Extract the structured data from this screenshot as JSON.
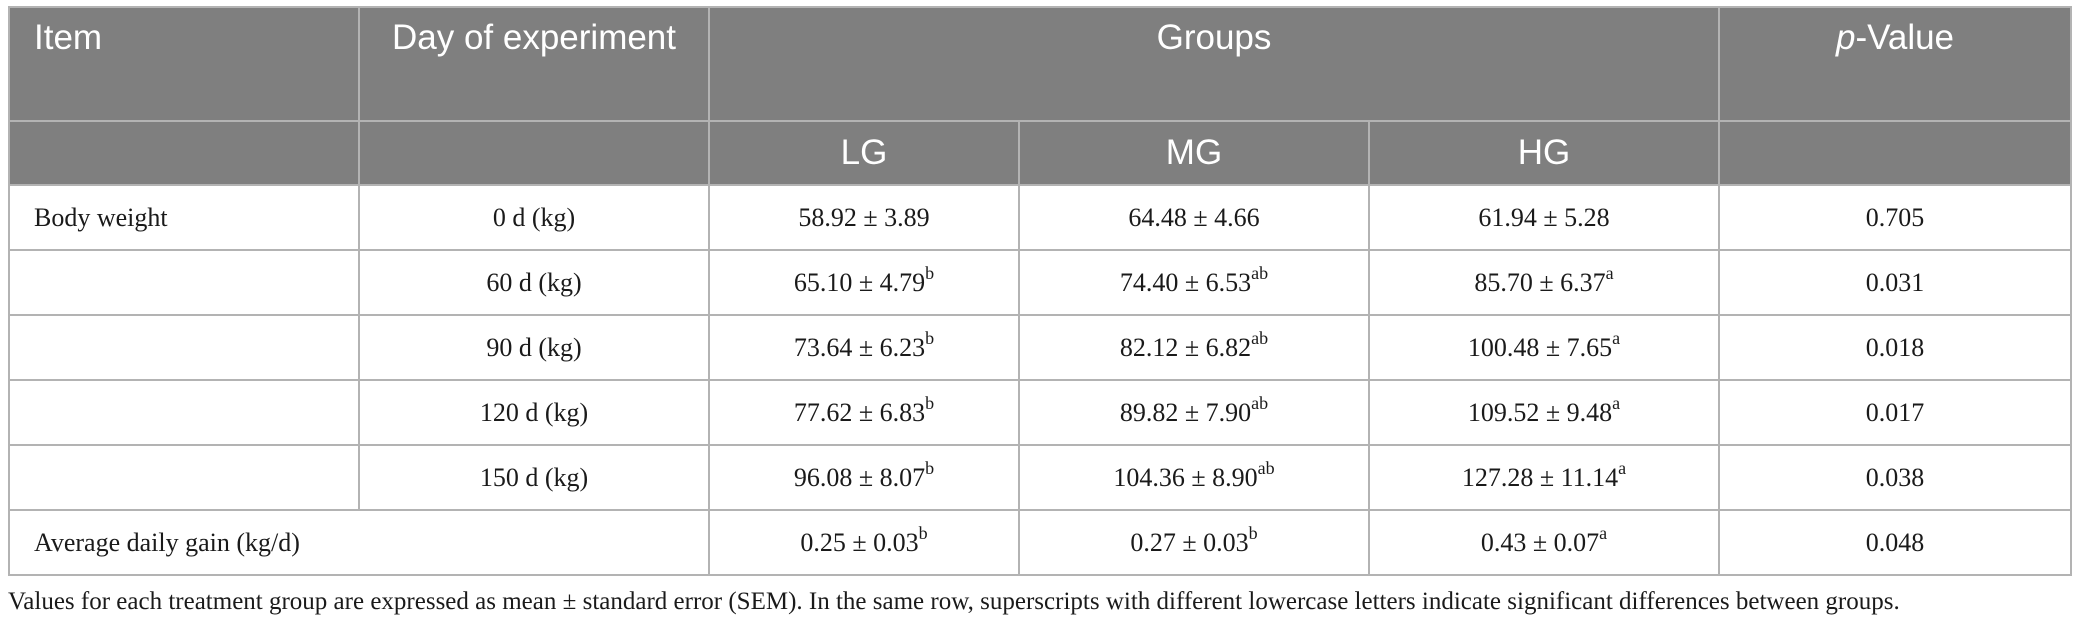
{
  "header": {
    "item": "Item",
    "day": "Day of experiment",
    "groups": "Groups",
    "pvalue_italic": "p",
    "pvalue_rest": "-Value",
    "lg": "LG",
    "mg": "MG",
    "hg": "HG"
  },
  "rows": [
    {
      "item": "Body weight",
      "day": "0 d (kg)",
      "lg": "58.92 ± 3.89",
      "lg_sup": "",
      "mg": "64.48 ± 4.66",
      "mg_sup": "",
      "hg": "61.94 ± 5.28",
      "hg_sup": "",
      "p": "0.705"
    },
    {
      "item": "",
      "day": "60 d (kg)",
      "lg": "65.10 ± 4.79",
      "lg_sup": "b",
      "mg": "74.40 ± 6.53",
      "mg_sup": "ab",
      "hg": "85.70 ± 6.37",
      "hg_sup": "a",
      "p": "0.031"
    },
    {
      "item": "",
      "day": "90 d (kg)",
      "lg": "73.64 ± 6.23",
      "lg_sup": "b",
      "mg": "82.12 ± 6.82",
      "mg_sup": "ab",
      "hg": "100.48 ± 7.65",
      "hg_sup": "a",
      "p": "0.018"
    },
    {
      "item": "",
      "day": "120 d (kg)",
      "lg": "77.62 ± 6.83",
      "lg_sup": "b",
      "mg": "89.82 ± 7.90",
      "mg_sup": "ab",
      "hg": "109.52 ± 9.48",
      "hg_sup": "a",
      "p": "0.017"
    },
    {
      "item": "",
      "day": "150 d (kg)",
      "lg": "96.08 ± 8.07",
      "lg_sup": "b",
      "mg": "104.36 ± 8.90",
      "mg_sup": "ab",
      "hg": "127.28 ± 11.14",
      "hg_sup": "a",
      "p": "0.038"
    }
  ],
  "adg": {
    "item": "Average daily gain (kg/d)",
    "lg": "0.25 ± 0.03",
    "lg_sup": "b",
    "mg": "0.27 ± 0.03",
    "mg_sup": "b",
    "hg": "0.43 ± 0.07",
    "hg_sup": "a",
    "p": "0.048"
  },
  "footnote": "Values for each treatment group are expressed as mean ± standard error (SEM). In the same row, superscripts with different lowercase letters indicate significant differences between groups."
}
